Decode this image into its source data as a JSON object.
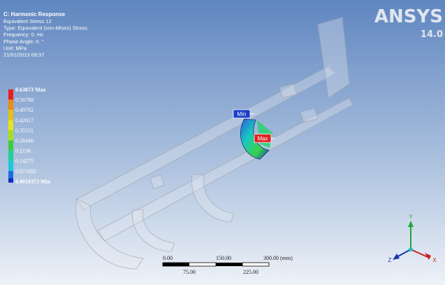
{
  "header": {
    "title": "C: Harmonic Response",
    "lines": [
      "Equivalent Stress 12",
      "Type: Equivalent (von-Mises) Stress",
      "Frequency: 0. Hz",
      "Phase Angle: 0. °",
      "Unit: MPa",
      "21/01/2013 09:37"
    ]
  },
  "legend": {
    "labels": [
      "0.63873 Max",
      "0.56788",
      "0.49702",
      "0.42617",
      "0.35531",
      "0.28446",
      "0.2136",
      "0.14275",
      "0.071892",
      "0.0010373 Min"
    ]
  },
  "logo": {
    "brand": "ANSYS",
    "version": "14.0"
  },
  "probes": {
    "min": "Min",
    "max": "Max"
  },
  "scale_bar": {
    "top_labels": [
      "0.00",
      "150.00",
      "300.00 (mm)"
    ],
    "bottom_labels": [
      "75.00",
      "225.00"
    ]
  },
  "triad": {
    "x": "X",
    "y": "Y",
    "z": "Z"
  }
}
